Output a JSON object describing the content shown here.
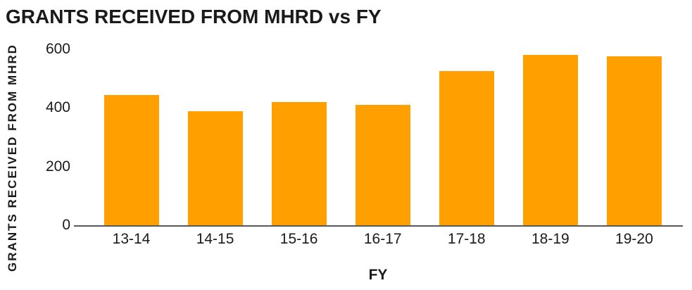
{
  "chart_data": {
    "type": "bar",
    "title": "GRANTS RECEIVED FROM MHRD vs FY",
    "xlabel": "FY",
    "ylabel": "GRANTS RECEIVED FROM MHRD",
    "categories": [
      "13-14",
      "14-15",
      "15-16",
      "16-17",
      "17-18",
      "18-19",
      "19-20"
    ],
    "values": [
      445,
      390,
      420,
      410,
      525,
      580,
      575
    ],
    "ylim": [
      0,
      600
    ],
    "yticks": [
      0,
      200,
      400,
      600
    ],
    "grid": false,
    "legend_position": "none",
    "bar_color": "#FFA000",
    "axis_color": "#595959",
    "text_color": "#1a1a1a",
    "background_color": "#ffffff"
  }
}
